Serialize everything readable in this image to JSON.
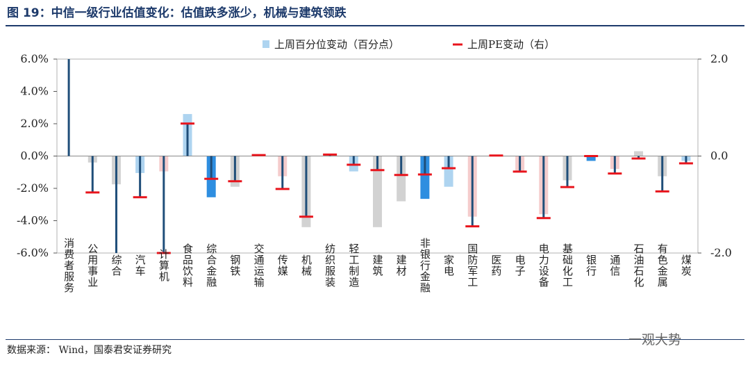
{
  "title": "图 19：中信一级行业估值变化：估值跌多涨少，机械与建筑领跌",
  "source": "数据来源：  Wind，国泰君安证券研究",
  "watermark": "一观大势",
  "chart_data": {
    "type": "bar",
    "categories": [
      "消费者服务",
      "公用事业",
      "综合",
      "汽车",
      "计算机",
      "食品饮料",
      "综合金融",
      "钢铁",
      "交通运输",
      "传媒",
      "机械",
      "纺织服装",
      "轻工制造",
      "建筑",
      "建材",
      "非银行金融",
      "家电",
      "国防军工",
      "医药",
      "电子",
      "电力设备",
      "基础化工",
      "银行",
      "通信",
      "石油石化",
      "有色金属",
      "煤炭"
    ],
    "series": [
      {
        "name": "上周百分位变动（百分点）",
        "axis": "left",
        "unit": "%",
        "values": [
          0.0,
          -0.4,
          -1.75,
          -1.05,
          -0.95,
          2.6,
          -2.55,
          -1.9,
          0.0,
          -1.25,
          -4.4,
          0.0,
          -0.95,
          -4.4,
          -2.8,
          -2.65,
          -1.9,
          -3.75,
          0.0,
          -0.95,
          -3.6,
          -1.5,
          -0.3,
          -0.8,
          0.3,
          -1.25,
          -0.3
        ],
        "colors": [
          "#aed4f0",
          "#d2d2d2",
          "#d2d2d2",
          "#aed4f0",
          "#f5cccc",
          "#aed4f0",
          "#2e8ee0",
          "#d2d2d2",
          "#d2d2d2",
          "#f5cccc",
          "#d2d2d2",
          "#d2d2d2",
          "#aed4f0",
          "#d2d2d2",
          "#d2d2d2",
          "#2e8ee0",
          "#aed4f0",
          "#f5cccc",
          "#aed4f0",
          "#f5cccc",
          "#f5cccc",
          "#d2d2d2",
          "#2e8ee0",
          "#f5cccc",
          "#d2d2d2",
          "#d2d2d2",
          "#aed4f0"
        ]
      },
      {
        "name": "上周PE变动（右）",
        "axis": "right",
        "values": [
          2.2,
          -0.75,
          -2.1,
          -0.85,
          -2.0,
          0.67,
          -0.47,
          -0.52,
          0.02,
          -0.68,
          -1.25,
          0.03,
          -0.18,
          -0.29,
          -0.39,
          -0.38,
          -0.25,
          -1.45,
          0.01,
          -0.32,
          -1.28,
          -0.64,
          0.0,
          -0.36,
          -0.05,
          -0.73,
          -0.15
        ]
      }
    ],
    "ylim": [
      -6,
      6
    ],
    "yticks": [
      "6.0%",
      "4.0%",
      "2.0%",
      "0.0%",
      "-2.0%",
      "-4.0%",
      "-6.0%"
    ],
    "y2lim": [
      -2,
      2
    ],
    "y2ticks": [
      "2.0",
      "0.0",
      "-2.0"
    ],
    "xlabel": "",
    "ylabel": "",
    "legend_position": "top-center",
    "grid": false,
    "colors": {
      "pe_stem": "#1f4e79",
      "pe_marker": "#e8141c",
      "plot_border": "#b0b0b0",
      "legend_bar": "#aed4f0"
    }
  }
}
